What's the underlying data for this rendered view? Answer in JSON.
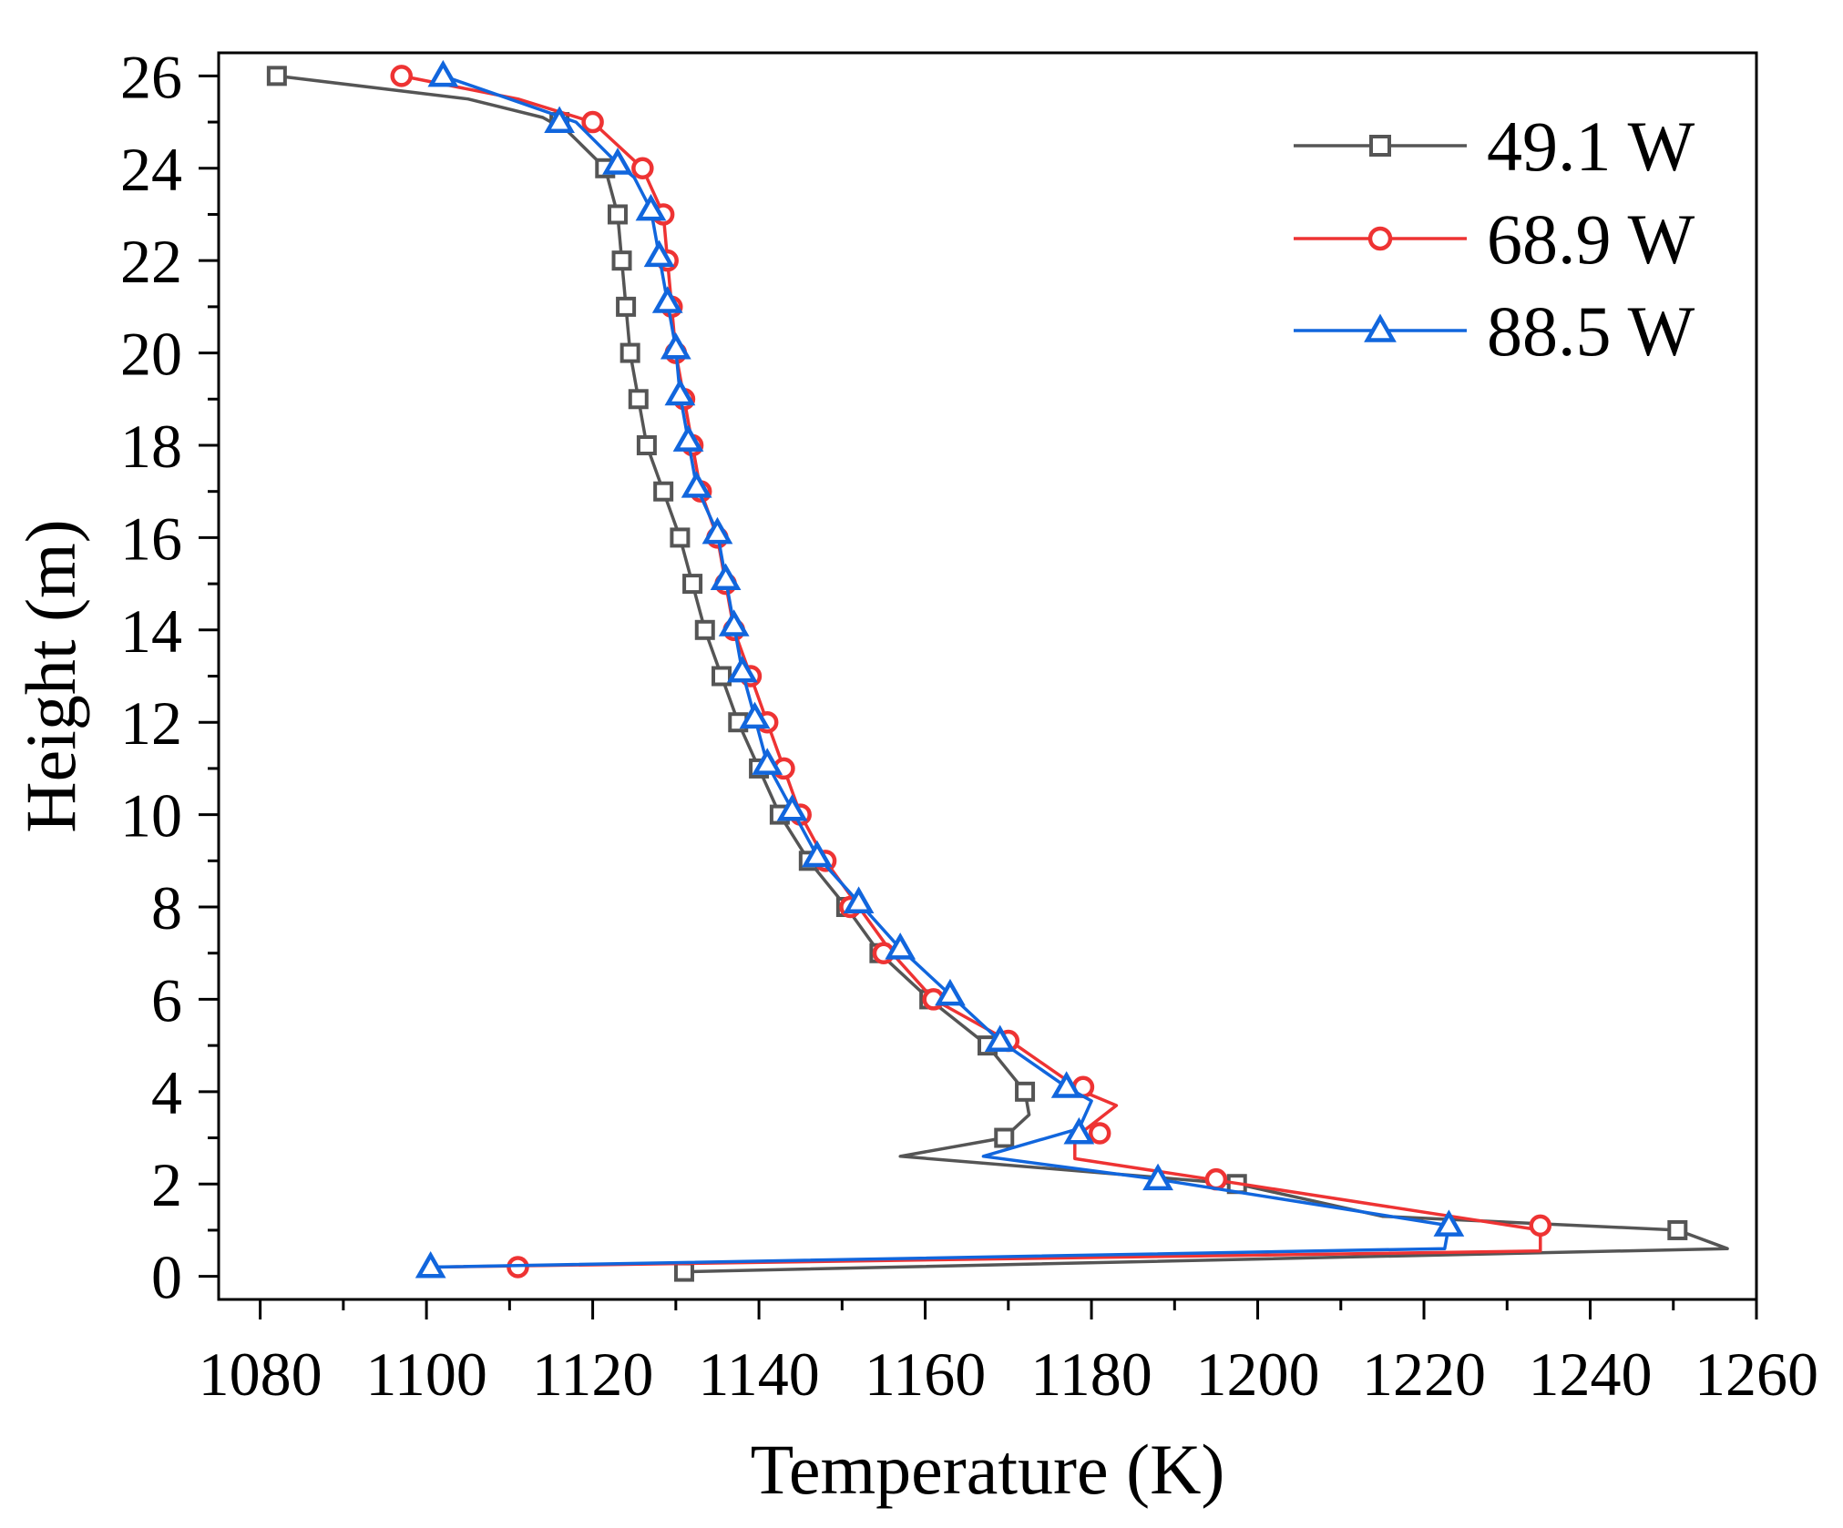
{
  "chart_data": {
    "type": "line",
    "title": "",
    "xlabel": "Temperature (K)",
    "ylabel": "Height (m)",
    "xlim": [
      1075,
      1260
    ],
    "ylim": [
      -0.5,
      26.5
    ],
    "xticks": [
      1080,
      1100,
      1120,
      1140,
      1160,
      1180,
      1200,
      1220,
      1240,
      1260
    ],
    "yticks": [
      0,
      2,
      4,
      6,
      8,
      10,
      12,
      14,
      16,
      18,
      20,
      22,
      24,
      26
    ],
    "xtick_labels": [
      "1080",
      "1100",
      "1120",
      "1140",
      "1160",
      "1180",
      "1200",
      "1220",
      "1240",
      "1260"
    ],
    "ytick_labels": [
      "0",
      "2",
      "4",
      "6",
      "8",
      "10",
      "12",
      "14",
      "16",
      "18",
      "20",
      "22",
      "24",
      "26"
    ],
    "grid": false,
    "legend_position": "top-right",
    "series": [
      {
        "name": "49.1 W",
        "color": "#555555",
        "marker": "square",
        "line": [
          [
            1131,
            0.1
          ],
          [
            1256.5,
            0.6
          ],
          [
            1250.5,
            1.0
          ],
          [
            1215,
            1.3
          ],
          [
            1197.5,
            2.0
          ],
          [
            1157,
            2.6
          ],
          [
            1169.5,
            3.0
          ],
          [
            1172.5,
            3.5
          ],
          [
            1172,
            4.0
          ],
          [
            1167.5,
            5.0
          ],
          [
            1160.5,
            6.0
          ],
          [
            1154.5,
            7.0
          ],
          [
            1150.5,
            8.0
          ],
          [
            1146,
            9.0
          ],
          [
            1142.5,
            10.0
          ],
          [
            1140,
            11.0
          ],
          [
            1137.5,
            12.0
          ],
          [
            1135.5,
            13.0
          ],
          [
            1133.5,
            14.0
          ],
          [
            1132,
            15.0
          ],
          [
            1130.5,
            16.0
          ],
          [
            1128.5,
            17.0
          ],
          [
            1126.5,
            18.0
          ],
          [
            1125.5,
            19.0
          ],
          [
            1124.5,
            20.0
          ],
          [
            1124,
            21.0
          ],
          [
            1123.5,
            22.0
          ],
          [
            1123,
            23.0
          ],
          [
            1121.5,
            24.0
          ],
          [
            1117,
            24.8
          ],
          [
            1114,
            25.1
          ],
          [
            1105,
            25.5
          ],
          [
            1082,
            26.0
          ]
        ],
        "points": [
          [
            1131,
            0.1
          ],
          [
            1250.5,
            1.0
          ],
          [
            1197.5,
            2.0
          ],
          [
            1169.5,
            3.0
          ],
          [
            1172,
            4.0
          ],
          [
            1167.5,
            5.0
          ],
          [
            1160.5,
            6.0
          ],
          [
            1154.5,
            7.0
          ],
          [
            1150.5,
            8.0
          ],
          [
            1146,
            9.0
          ],
          [
            1142.5,
            10.0
          ],
          [
            1140,
            11.0
          ],
          [
            1137.5,
            12.0
          ],
          [
            1135.5,
            13.0
          ],
          [
            1133.5,
            14.0
          ],
          [
            1132,
            15.0
          ],
          [
            1130.5,
            16.0
          ],
          [
            1128.5,
            17.0
          ],
          [
            1126.5,
            18.0
          ],
          [
            1125.5,
            19.0
          ],
          [
            1124.5,
            20.0
          ],
          [
            1124,
            21.0
          ],
          [
            1123.5,
            22.0
          ],
          [
            1123,
            23.0
          ],
          [
            1121.5,
            24.0
          ],
          [
            1116,
            25.0
          ],
          [
            1082,
            26.0
          ]
        ]
      },
      {
        "name": "68.9 W",
        "color": "#EE3333",
        "marker": "circle",
        "line": [
          [
            1101,
            0.2
          ],
          [
            1234,
            0.55
          ],
          [
            1234,
            1.0
          ],
          [
            1198,
            2.0
          ],
          [
            1178,
            2.55
          ],
          [
            1178,
            3.0
          ],
          [
            1183,
            3.7
          ],
          [
            1179,
            4.0
          ],
          [
            1171,
            5.0
          ],
          [
            1161,
            6.0
          ],
          [
            1156,
            7.0
          ],
          [
            1152,
            8.0
          ],
          [
            1148,
            9.0
          ],
          [
            1145,
            10.0
          ],
          [
            1143,
            11.0
          ],
          [
            1141,
            12.0
          ],
          [
            1139,
            13.0
          ],
          [
            1137,
            14.0
          ],
          [
            1136,
            15.0
          ],
          [
            1135,
            16.0
          ],
          [
            1133,
            17.0
          ],
          [
            1132,
            18.0
          ],
          [
            1131,
            19.0
          ],
          [
            1130,
            20.0
          ],
          [
            1129.5,
            21.0
          ],
          [
            1129,
            22.0
          ],
          [
            1128.5,
            23.0
          ],
          [
            1126,
            24.0
          ],
          [
            1120,
            25.0
          ],
          [
            1111,
            25.5
          ],
          [
            1097,
            26.0
          ]
        ],
        "points": [
          [
            1111,
            0.2
          ],
          [
            1234,
            1.1
          ],
          [
            1195,
            2.1
          ],
          [
            1181,
            3.1
          ],
          [
            1179,
            4.1
          ],
          [
            1170,
            5.1
          ],
          [
            1161,
            6.0
          ],
          [
            1155,
            7.0
          ],
          [
            1151,
            8.0
          ],
          [
            1148,
            9.0
          ],
          [
            1145,
            10.0
          ],
          [
            1143,
            11.0
          ],
          [
            1141,
            12.0
          ],
          [
            1139,
            13.0
          ],
          [
            1137,
            14.0
          ],
          [
            1136,
            15.0
          ],
          [
            1135,
            16.0
          ],
          [
            1133,
            17.0
          ],
          [
            1132,
            18.0
          ],
          [
            1131,
            19.0
          ],
          [
            1130,
            20.0
          ],
          [
            1129.5,
            21.0
          ],
          [
            1129,
            22.0
          ],
          [
            1128.5,
            23.0
          ],
          [
            1126,
            24.0
          ],
          [
            1120,
            25.0
          ],
          [
            1097,
            26.0
          ]
        ]
      },
      {
        "name": "88.5 W",
        "color": "#1166DD",
        "marker": "triangle",
        "line": [
          [
            1100.5,
            0.2
          ],
          [
            1222.5,
            0.6
          ],
          [
            1223,
            1.1
          ],
          [
            1188,
            2.1
          ],
          [
            1167,
            2.6
          ],
          [
            1178.5,
            3.2
          ],
          [
            1180,
            3.8
          ],
          [
            1177,
            4.1
          ],
          [
            1169,
            5.1
          ],
          [
            1163,
            6.1
          ],
          [
            1157,
            7.1
          ],
          [
            1152,
            8.1
          ],
          [
            1147,
            9.1
          ],
          [
            1144,
            10.1
          ],
          [
            1141,
            11.1
          ],
          [
            1139.5,
            12.1
          ],
          [
            1138,
            13.1
          ],
          [
            1137,
            14.1
          ],
          [
            1136,
            15.1
          ],
          [
            1135,
            16.1
          ],
          [
            1132.5,
            17.1
          ],
          [
            1131.5,
            18.1
          ],
          [
            1130.5,
            19.1
          ],
          [
            1130,
            20.1
          ],
          [
            1129,
            21.1
          ],
          [
            1128,
            22.1
          ],
          [
            1127,
            23.1
          ],
          [
            1125,
            23.8
          ],
          [
            1123,
            24.1
          ],
          [
            1118,
            25.0
          ],
          [
            1110,
            25.5
          ],
          [
            1102,
            26.0
          ]
        ],
        "points": [
          [
            1100.5,
            0.2
          ],
          [
            1223,
            1.1
          ],
          [
            1188,
            2.1
          ],
          [
            1178.5,
            3.1
          ],
          [
            1177,
            4.1
          ],
          [
            1169,
            5.1
          ],
          [
            1163,
            6.1
          ],
          [
            1157,
            7.1
          ],
          [
            1152,
            8.1
          ],
          [
            1147,
            9.1
          ],
          [
            1144,
            10.1
          ],
          [
            1141,
            11.1
          ],
          [
            1139.5,
            12.1
          ],
          [
            1138,
            13.1
          ],
          [
            1137,
            14.1
          ],
          [
            1136,
            15.1
          ],
          [
            1135,
            16.1
          ],
          [
            1132.5,
            17.1
          ],
          [
            1131.5,
            18.1
          ],
          [
            1130.5,
            19.1
          ],
          [
            1130,
            20.1
          ],
          [
            1129,
            21.1
          ],
          [
            1128,
            22.1
          ],
          [
            1127,
            23.1
          ],
          [
            1123,
            24.1
          ],
          [
            1116,
            25.0
          ],
          [
            1102,
            26.0
          ]
        ]
      }
    ]
  }
}
